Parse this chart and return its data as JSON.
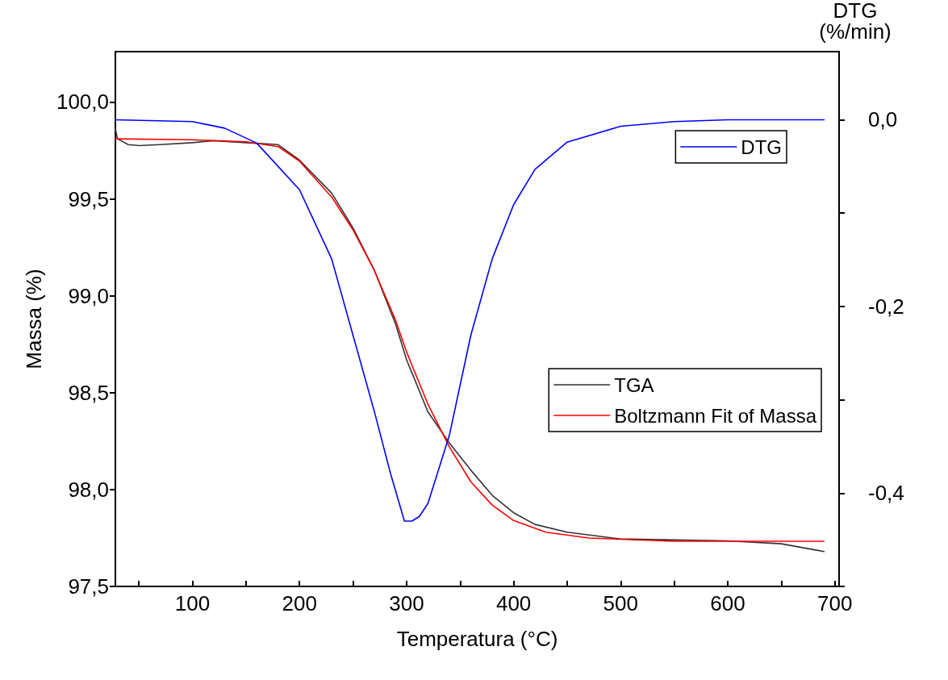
{
  "chart_data": {
    "type": "line",
    "xlabel": "Temperatura (°C)",
    "ylabel": "Massa (%)",
    "y2label": "DTG\n(%/min)",
    "legend": "right",
    "grid": false,
    "marker": "none",
    "line_style": "solid",
    "xlim": [
      28,
      704
    ],
    "xticks": [
      {
        "value": 50,
        "label": null
      },
      100,
      {
        "value": 150,
        "label": null
      },
      200,
      {
        "value": 250,
        "label": null
      },
      300,
      {
        "value": 350,
        "label": null
      },
      400,
      {
        "value": 450,
        "label": null
      },
      500,
      {
        "value": 550,
        "label": null
      },
      600,
      {
        "value": 650,
        "label": null
      },
      700
    ],
    "ylim": [
      97.5,
      100.26
    ],
    "yticks": [
      {
        "value": 97.5,
        "label": "97,5"
      },
      {
        "value": 98,
        "label": "98,0"
      },
      {
        "value": 98.5,
        "label": "98,5"
      },
      {
        "value": 99,
        "label": "99,0"
      },
      {
        "value": 99.5,
        "label": "99,5"
      },
      {
        "value": 100,
        "label": "100,0"
      }
    ],
    "y2lim": [
      -0.5,
      0.073
    ],
    "y2ticks": [
      {
        "value": -0.5,
        "label": null
      },
      {
        "value": -0.4,
        "label": "-0,4"
      },
      {
        "value": -0.3,
        "label": null
      },
      {
        "value": -0.2,
        "label": "-0,2"
      },
      {
        "value": -0.1,
        "label": null
      },
      {
        "value": 0,
        "label": "0,0"
      }
    ],
    "series": [
      {
        "name": "TGA",
        "color": "#333333",
        "x": [
          28,
          30,
          40,
          50,
          70,
          100,
          120,
          150,
          180,
          200,
          230,
          250,
          270,
          290,
          300,
          320,
          340,
          360,
          380,
          400,
          420,
          450,
          500,
          550,
          600,
          650,
          690
        ],
        "values": [
          99.86,
          99.81,
          99.78,
          99.775,
          99.78,
          99.79,
          99.8,
          99.79,
          99.78,
          99.7,
          99.53,
          99.35,
          99.13,
          98.85,
          98.67,
          98.4,
          98.24,
          98.1,
          97.97,
          97.88,
          97.82,
          97.78,
          97.745,
          97.74,
          97.735,
          97.72,
          97.68
        ]
      },
      {
        "name": "Boltzmann Fit of Massa",
        "color": "#ff0000",
        "x": [
          28,
          100,
          150,
          180,
          200,
          230,
          250,
          270,
          290,
          300,
          320,
          340,
          360,
          380,
          400,
          430,
          470,
          550,
          690
        ],
        "values": [
          99.81,
          99.805,
          99.795,
          99.77,
          99.695,
          99.51,
          99.34,
          99.13,
          98.87,
          98.71,
          98.44,
          98.22,
          98.04,
          97.92,
          97.84,
          97.78,
          97.75,
          97.733,
          97.733
        ]
      },
      {
        "name": "DTG",
        "color": "#0000ff",
        "axis": "y2",
        "x": [
          28,
          100,
          130,
          160,
          200,
          230,
          250,
          270,
          285,
          298,
          305,
          312,
          320,
          340,
          360,
          380,
          400,
          420,
          450,
          500,
          550,
          600,
          690
        ],
        "values": [
          0,
          -0.002,
          -0.009,
          -0.025,
          -0.075,
          -0.149,
          -0.231,
          -0.313,
          -0.379,
          -0.43,
          -0.43,
          -0.425,
          -0.411,
          -0.338,
          -0.231,
          -0.149,
          -0.091,
          -0.053,
          -0.024,
          -0.007,
          -0.002,
          0,
          0
        ]
      }
    ]
  }
}
